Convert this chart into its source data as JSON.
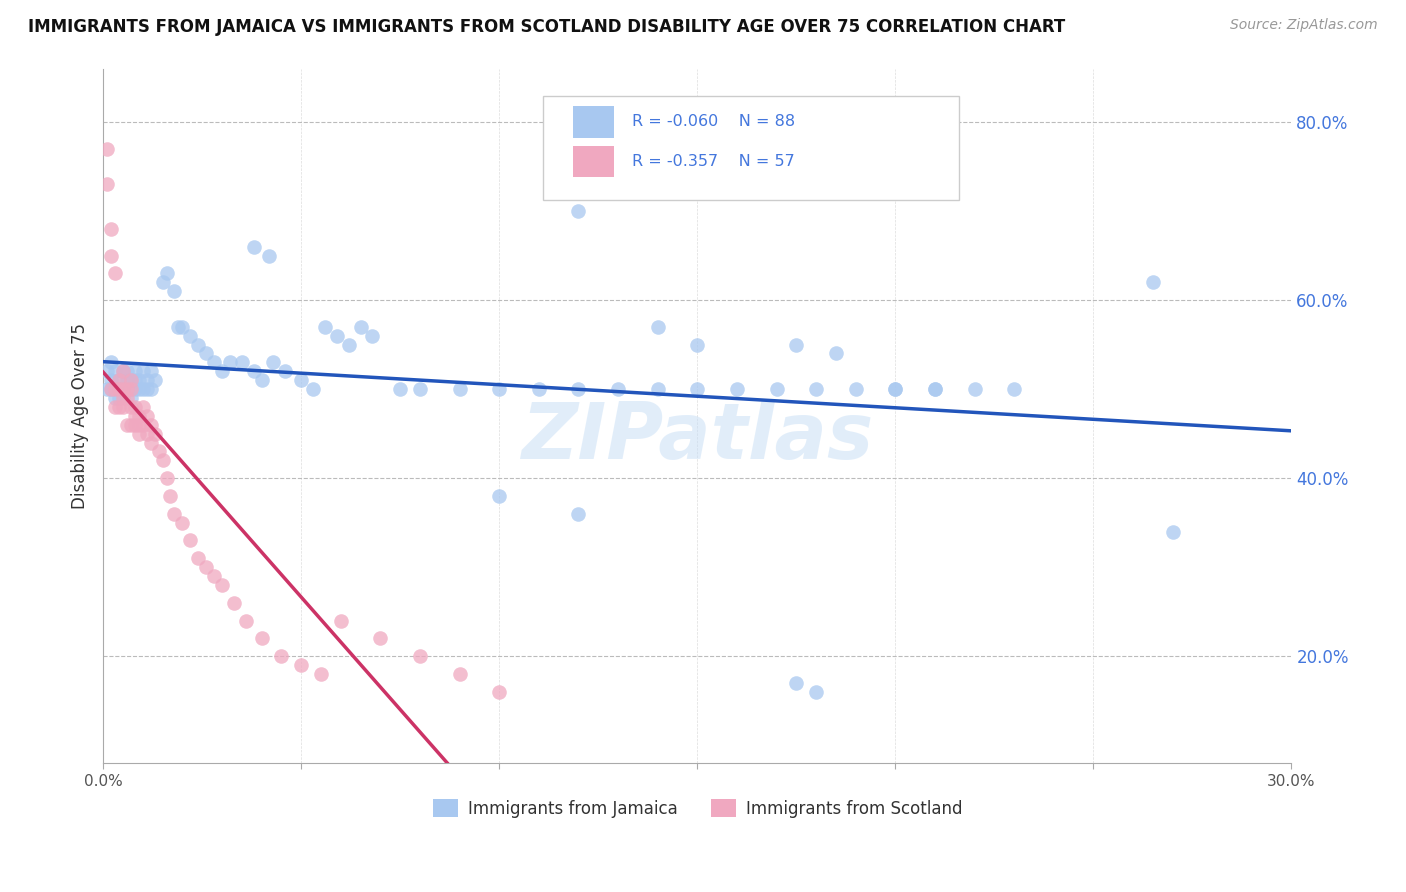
{
  "title": "IMMIGRANTS FROM JAMAICA VS IMMIGRANTS FROM SCOTLAND DISABILITY AGE OVER 75 CORRELATION CHART",
  "source": "Source: ZipAtlas.com",
  "ylabel": "Disability Age Over 75",
  "xlim": [
    0.0,
    0.3
  ],
  "ylim": [
    0.08,
    0.86
  ],
  "ytick_positions": [
    0.2,
    0.4,
    0.6,
    0.8
  ],
  "ytick_labels": [
    "20.0%",
    "40.0%",
    "60.0%",
    "80.0%"
  ],
  "xtick_positions": [
    0.0,
    0.05,
    0.1,
    0.15,
    0.2,
    0.25,
    0.3
  ],
  "xtick_labels": [
    "0.0%",
    "",
    "",
    "",
    "",
    "",
    "30.0%"
  ],
  "jamaica_color": "#a8c8f0",
  "scotland_color": "#f0a8c0",
  "jamaica_line_color": "#2255bb",
  "scotland_line_color": "#cc3366",
  "jamaica_R": -0.06,
  "jamaica_N": 88,
  "scotland_R": -0.357,
  "scotland_N": 57,
  "legend_label_jamaica": "Immigrants from Jamaica",
  "legend_label_scotland": "Immigrants from Scotland",
  "watermark": "ZIPatlas",
  "background_color": "#ffffff",
  "grid_color": "#bbbbbb",
  "title_color": "#111111",
  "label_color": "#4477dd"
}
